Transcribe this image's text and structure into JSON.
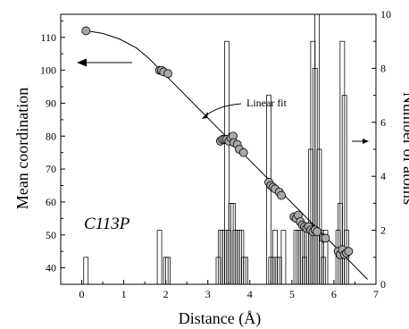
{
  "chart_data": {
    "type": "scatter",
    "panel_label": "C113P",
    "xlabel": "Distance (Å)",
    "ylabel_left": "Mean coordination",
    "ylabel_right": "Number of atoms",
    "xlim": [
      -0.5,
      7
    ],
    "ylim_left": [
      35,
      117
    ],
    "ylim_right": [
      0,
      10
    ],
    "x_ticks": [
      "0",
      "1",
      "2",
      "3",
      "4",
      "5",
      "6",
      "7"
    ],
    "y_ticks_left": [
      "40",
      "50",
      "60",
      "70",
      "80",
      "90",
      "100",
      "110"
    ],
    "y_ticks_right": [
      "0",
      "2",
      "4",
      "6",
      "8",
      "10"
    ],
    "annotation": "Linear fit",
    "colors": {
      "points": "#a8a8a8",
      "stroke": "#000000"
    },
    "scatter": [
      [
        0.1,
        112
      ],
      [
        1.85,
        100
      ],
      [
        1.9,
        100
      ],
      [
        1.95,
        99.5
      ],
      [
        2.05,
        99
      ],
      [
        3.3,
        78.5
      ],
      [
        3.35,
        79
      ],
      [
        3.4,
        79
      ],
      [
        3.45,
        79
      ],
      [
        3.5,
        78.5
      ],
      [
        3.55,
        79.5
      ],
      [
        3.6,
        80
      ],
      [
        3.62,
        78
      ],
      [
        3.7,
        77.5
      ],
      [
        3.75,
        76
      ],
      [
        3.85,
        75
      ],
      [
        4.45,
        66
      ],
      [
        4.5,
        65
      ],
      [
        4.55,
        64.5
      ],
      [
        4.6,
        64
      ],
      [
        4.7,
        63
      ],
      [
        4.75,
        62
      ],
      [
        5.05,
        55.5
      ],
      [
        5.1,
        55
      ],
      [
        5.15,
        56
      ],
      [
        5.2,
        54
      ],
      [
        5.25,
        53
      ],
      [
        5.3,
        52.5
      ],
      [
        5.35,
        52
      ],
      [
        5.4,
        52.5
      ],
      [
        5.45,
        51.5
      ],
      [
        5.5,
        51
      ],
      [
        5.55,
        51.5
      ],
      [
        5.6,
        51
      ],
      [
        5.75,
        49
      ],
      [
        5.8,
        49
      ],
      [
        6.1,
        45
      ],
      [
        6.15,
        44
      ],
      [
        6.2,
        45.5
      ],
      [
        6.25,
        44
      ],
      [
        6.3,
        44.5
      ],
      [
        6.35,
        45
      ]
    ],
    "fit_curve": [
      [
        0.1,
        112
      ],
      [
        0.5,
        111.2
      ],
      [
        0.9,
        109.5
      ],
      [
        1.3,
        106.8
      ],
      [
        1.6,
        103.6
      ],
      [
        1.8,
        101
      ]
    ],
    "linear_fit": [
      [
        1.8,
        101
      ],
      [
        6.8,
        36.5
      ]
    ],
    "histogram": [
      [
        0.1,
        1
      ],
      [
        1.85,
        2
      ],
      [
        2.0,
        1
      ],
      [
        2.05,
        1
      ],
      [
        3.25,
        1
      ],
      [
        3.3,
        2
      ],
      [
        3.35,
        2
      ],
      [
        3.4,
        2
      ],
      [
        3.45,
        9
      ],
      [
        3.5,
        2
      ],
      [
        3.55,
        3
      ],
      [
        3.6,
        3
      ],
      [
        3.65,
        2
      ],
      [
        3.7,
        2
      ],
      [
        3.75,
        2
      ],
      [
        3.8,
        2
      ],
      [
        3.85,
        1
      ],
      [
        3.9,
        1
      ],
      [
        4.45,
        7
      ],
      [
        4.5,
        1
      ],
      [
        4.55,
        1
      ],
      [
        4.6,
        2
      ],
      [
        4.65,
        1
      ],
      [
        4.7,
        1
      ],
      [
        4.8,
        2
      ],
      [
        5.1,
        2
      ],
      [
        5.15,
        2
      ],
      [
        5.2,
        2
      ],
      [
        5.25,
        2
      ],
      [
        5.3,
        1
      ],
      [
        5.35,
        2
      ],
      [
        5.4,
        2
      ],
      [
        5.45,
        5
      ],
      [
        5.5,
        9
      ],
      [
        5.55,
        8
      ],
      [
        5.6,
        10
      ],
      [
        5.65,
        5
      ],
      [
        5.7,
        2
      ],
      [
        5.75,
        1
      ],
      [
        5.8,
        2
      ],
      [
        6.1,
        2
      ],
      [
        6.15,
        3
      ],
      [
        6.2,
        9
      ],
      [
        6.25,
        7
      ],
      [
        6.3,
        2
      ]
    ]
  }
}
